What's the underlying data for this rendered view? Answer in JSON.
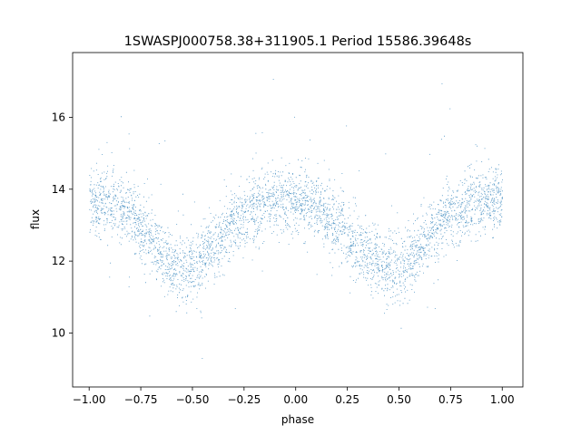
{
  "chart_data": {
    "type": "scatter",
    "title": "1SWASPJ000758.38+311905.1 Period 15586.39648s",
    "xlabel": "phase",
    "ylabel": "flux",
    "xlim": [
      -1.08,
      1.1
    ],
    "ylim": [
      8.5,
      17.8
    ],
    "x_ticks": [
      -1.0,
      -0.75,
      -0.5,
      -0.25,
      0.0,
      0.25,
      0.5,
      0.75,
      1.0
    ],
    "x_tick_labels": [
      "−1.00",
      "−0.75",
      "−0.50",
      "−0.25",
      "0.00",
      "0.25",
      "0.50",
      "0.75",
      "1.00"
    ],
    "y_ticks": [
      10,
      12,
      14,
      16
    ],
    "y_tick_labels": [
      "10",
      "12",
      "14",
      "16"
    ],
    "grid": false,
    "point_color": "#1f77b4",
    "series": [
      {
        "light_curve_profile": {
          "phase": [
            -1.0,
            -0.9,
            -0.8,
            -0.7,
            -0.6,
            -0.5,
            -0.4,
            -0.3,
            -0.2,
            -0.1,
            0.0,
            0.1,
            0.2,
            0.3,
            0.4,
            0.5,
            0.6,
            0.7,
            0.8,
            0.9,
            1.0
          ],
          "flux": [
            13.7,
            13.6,
            13.3,
            12.6,
            11.9,
            11.8,
            12.4,
            13.1,
            13.5,
            13.7,
            13.75,
            13.5,
            13.0,
            12.4,
            11.9,
            11.8,
            12.4,
            13.1,
            13.5,
            13.65,
            13.7
          ]
        },
        "scatter_sigma": 0.45,
        "outlier_fraction": 0.03,
        "approx_point_count": 26000
      }
    ]
  }
}
